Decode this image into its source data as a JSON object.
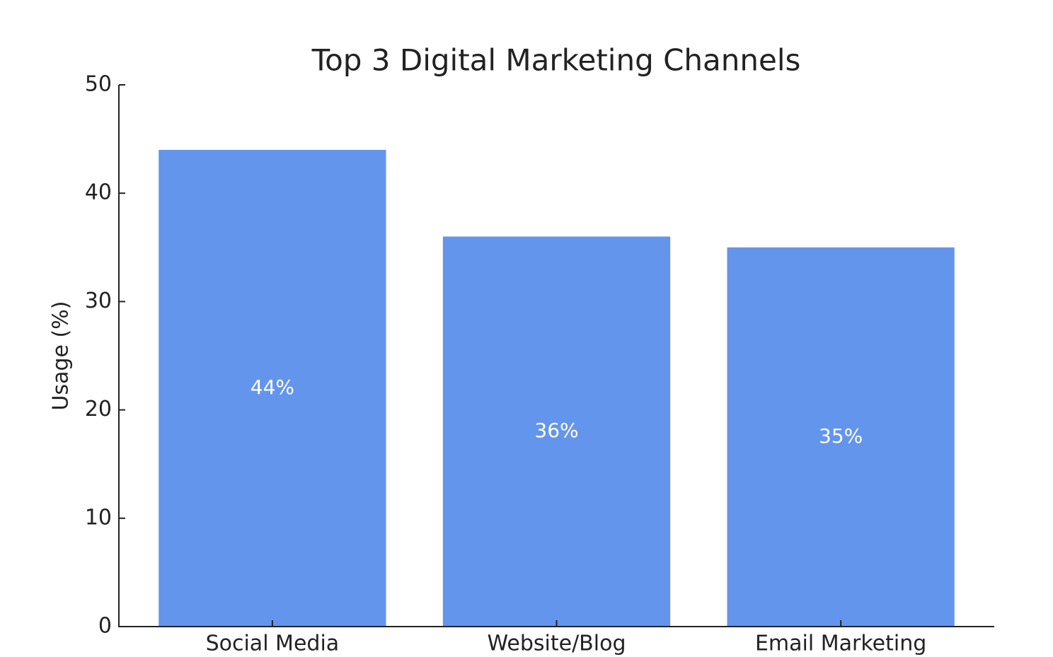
{
  "chart_data": {
    "type": "bar",
    "title": "Top 3 Digital Marketing Channels",
    "y_label": "Usage (%)",
    "categories": [
      "Social Media",
      "Website/Blog",
      "Email Marketing"
    ],
    "values": [
      44,
      36,
      35
    ],
    "value_labels": [
      "44%",
      "36%",
      "35%"
    ],
    "color": "#6495ed",
    "ylim": [
      0,
      50
    ],
    "yticks": [
      0,
      10,
      20,
      30,
      40,
      50
    ],
    "grid": false
  }
}
